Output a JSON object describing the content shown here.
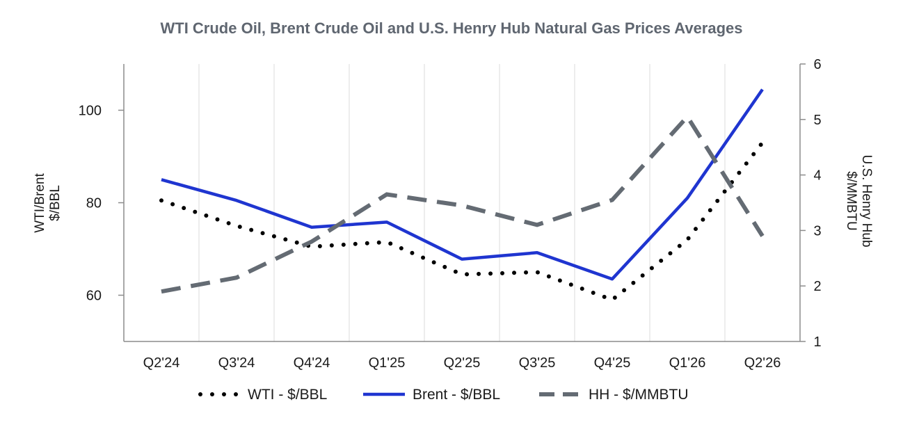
{
  "chart_data": {
    "type": "line",
    "title": "WTI Crude Oil, Brent Crude Oil and U.S. Henry Hub Natural Gas Prices Averages",
    "categories": [
      "Q2'24",
      "Q3'24",
      "Q4'24",
      "Q1'25",
      "Q2'25",
      "Q3'25",
      "Q4'25",
      "Q1'26",
      "Q2'26"
    ],
    "y_left": {
      "label_lines": [
        "WTI/Brent",
        "$/BBL"
      ],
      "ticks": [
        "60",
        "80",
        "100"
      ],
      "tick_values": [
        60,
        80,
        100
      ],
      "ylim": [
        50,
        110
      ]
    },
    "y_right": {
      "label_lines": [
        "U.S. Henry Hub",
        "$/MMBTU"
      ],
      "ticks": [
        "1",
        "2",
        "3",
        "4",
        "5",
        "6"
      ],
      "tick_values": [
        1,
        2,
        3,
        4,
        5,
        6
      ],
      "ylim": [
        1,
        6
      ]
    },
    "series": [
      {
        "name": "WTI - $/BBL",
        "axis": "left",
        "style": "dotted",
        "color": "#000000",
        "values": [
          80.5,
          75.0,
          70.5,
          71.5,
          64.5,
          65.0,
          59.0,
          72.0,
          93.0
        ]
      },
      {
        "name": "Brent - $/BBL",
        "axis": "left",
        "style": "solid",
        "color": "#1f35d0",
        "values": [
          85.0,
          80.5,
          74.7,
          75.8,
          67.8,
          69.2,
          63.5,
          81.0,
          104.5
        ]
      },
      {
        "name": "HH - $/MMBTU",
        "axis": "right",
        "style": "dashed",
        "color": "#646b73",
        "values": [
          1.9,
          2.15,
          2.8,
          3.65,
          3.45,
          3.1,
          3.55,
          5.05,
          2.9
        ]
      }
    ],
    "grid": "vertical",
    "legend_position": "bottom"
  }
}
